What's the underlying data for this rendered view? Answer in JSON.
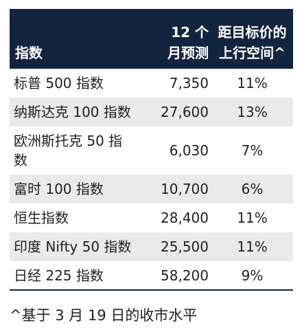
{
  "table": {
    "headers": {
      "name": "指数",
      "forecast_line1": "12 个",
      "forecast_line2": "月预测",
      "upside_line1": "距目标价的",
      "upside_line2": "上行空间^"
    },
    "rows": [
      {
        "name": "标普 500 指数",
        "forecast": "7,350",
        "upside": "11%"
      },
      {
        "name": "纳斯达克 100 指数",
        "forecast": "27,600",
        "upside": "13%"
      },
      {
        "name_line1": "欧洲斯托克 50 指",
        "name_line2": "数",
        "forecast": "6,030",
        "upside": "7%"
      },
      {
        "name": "富时 100 指数",
        "forecast": "10,700",
        "upside": "6%"
      },
      {
        "name": "恒生指数",
        "forecast": "28,400",
        "upside": "11%"
      },
      {
        "name": "印度 Nifty 50 指数",
        "forecast": "25,500",
        "upside": "11%"
      },
      {
        "name": "日经 225 指数",
        "forecast": "58,200",
        "upside": "9%"
      }
    ]
  },
  "footnote": "^基于 3 月 19 日的收市水平",
  "colors": {
    "header_bg": "#13253e",
    "row_shade": "#eaeaea",
    "text": "#1f1f1f"
  }
}
